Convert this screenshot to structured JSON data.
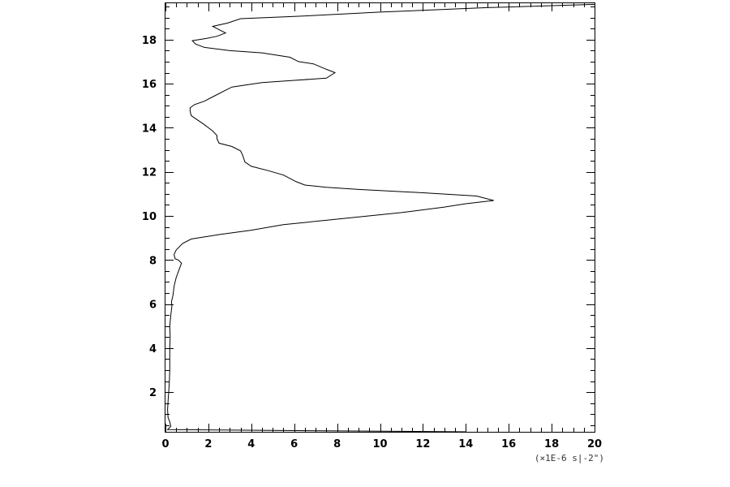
{
  "chart_data": {
    "type": "line",
    "title": "",
    "xlabel": "",
    "ylabel": "",
    "x_unit_label": "(×1E-6 s|-2\")",
    "xlim": [
      0,
      20
    ],
    "ylim": [
      0.2,
      19.65
    ],
    "x_ticks": [
      "0",
      "2",
      "4",
      "6",
      "8",
      "10",
      "12",
      "14",
      "16",
      "18",
      "20"
    ],
    "y_ticks": [
      "2",
      "4",
      "6",
      "8",
      "10",
      "12",
      "14",
      "16",
      "18"
    ],
    "grid": false,
    "series": [
      {
        "points": [
          [
            14.0,
            0.2
          ],
          [
            0.1,
            0.3
          ],
          [
            0.25,
            0.45
          ],
          [
            0.2,
            0.65
          ],
          [
            0.12,
            0.85
          ],
          [
            0.1,
            1.2
          ],
          [
            0.12,
            1.6
          ],
          [
            0.15,
            2.0
          ],
          [
            0.18,
            2.5
          ],
          [
            0.2,
            3.0
          ],
          [
            0.2,
            3.5
          ],
          [
            0.2,
            4.0
          ],
          [
            0.22,
            4.5
          ],
          [
            0.2,
            5.0
          ],
          [
            0.25,
            5.5
          ],
          [
            0.3,
            5.9
          ],
          [
            0.28,
            6.1
          ],
          [
            0.35,
            6.4
          ],
          [
            0.4,
            6.8
          ],
          [
            0.5,
            7.2
          ],
          [
            0.65,
            7.6
          ],
          [
            0.75,
            7.85
          ],
          [
            0.6,
            8.0
          ],
          [
            0.45,
            8.05
          ],
          [
            0.4,
            8.25
          ],
          [
            0.5,
            8.45
          ],
          [
            0.8,
            8.75
          ],
          [
            1.2,
            8.95
          ],
          [
            2.5,
            9.15
          ],
          [
            4.0,
            9.35
          ],
          [
            5.5,
            9.6
          ],
          [
            8.0,
            9.85
          ],
          [
            11.0,
            10.15
          ],
          [
            13.0,
            10.4
          ],
          [
            14.0,
            10.55
          ],
          [
            15.3,
            10.7
          ],
          [
            14.5,
            10.9
          ],
          [
            12.0,
            11.05
          ],
          [
            9.0,
            11.2
          ],
          [
            7.5,
            11.3
          ],
          [
            6.5,
            11.4
          ],
          [
            6.1,
            11.55
          ],
          [
            5.5,
            11.85
          ],
          [
            4.8,
            12.05
          ],
          [
            4.0,
            12.25
          ],
          [
            3.7,
            12.45
          ],
          [
            3.6,
            12.75
          ],
          [
            3.5,
            12.95
          ],
          [
            3.1,
            13.15
          ],
          [
            2.5,
            13.3
          ],
          [
            2.4,
            13.5
          ],
          [
            2.4,
            13.65
          ],
          [
            2.2,
            13.85
          ],
          [
            1.8,
            14.15
          ],
          [
            1.5,
            14.35
          ],
          [
            1.2,
            14.55
          ],
          [
            1.15,
            14.75
          ],
          [
            1.15,
            14.9
          ],
          [
            1.35,
            15.05
          ],
          [
            1.8,
            15.2
          ],
          [
            2.3,
            15.45
          ],
          [
            2.8,
            15.7
          ],
          [
            3.1,
            15.85
          ],
          [
            4.5,
            16.05
          ],
          [
            6.0,
            16.15
          ],
          [
            7.5,
            16.25
          ],
          [
            7.9,
            16.5
          ],
          [
            7.5,
            16.65
          ],
          [
            6.9,
            16.9
          ],
          [
            6.2,
            17.0
          ],
          [
            5.8,
            17.2
          ],
          [
            4.5,
            17.4
          ],
          [
            3.0,
            17.5
          ],
          [
            1.8,
            17.65
          ],
          [
            1.4,
            17.8
          ],
          [
            1.25,
            17.95
          ],
          [
            1.9,
            18.05
          ],
          [
            2.4,
            18.15
          ],
          [
            2.8,
            18.3
          ],
          [
            2.5,
            18.45
          ],
          [
            2.2,
            18.6
          ],
          [
            2.9,
            18.75
          ],
          [
            3.5,
            18.95
          ],
          [
            6.0,
            19.05
          ],
          [
            10.0,
            19.25
          ],
          [
            15.0,
            19.45
          ],
          [
            20.0,
            19.6
          ]
        ]
      }
    ]
  }
}
